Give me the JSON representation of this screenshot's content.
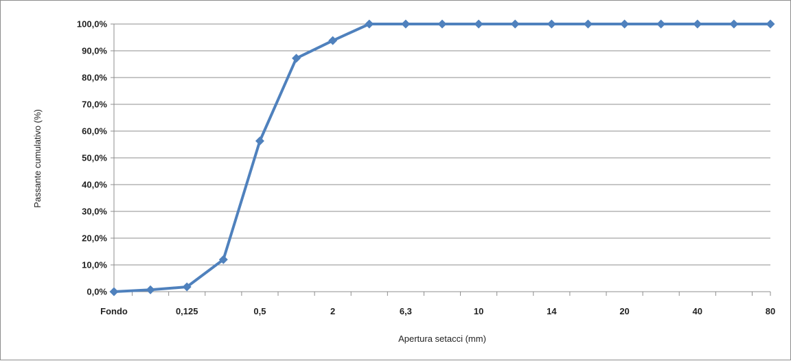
{
  "chart_data": {
    "type": "line",
    "title": "",
    "xlabel": "Apertura setacci (mm)",
    "ylabel": "Passante cumulativo (%)",
    "categories": [
      "Fondo",
      "",
      "0,125",
      "",
      "0,5",
      "",
      "2",
      "",
      "6,3",
      "",
      "10",
      "",
      "14",
      "",
      "20",
      "",
      "40",
      "",
      "80"
    ],
    "series": [
      {
        "values": [
          0.0,
          0.7,
          1.8,
          12.0,
          56.3,
          87.2,
          93.8,
          100.0,
          100.0,
          100.0,
          100.0,
          100.0,
          100.0,
          100.0,
          100.0,
          100.0,
          100.0,
          100.0,
          100.0
        ]
      }
    ],
    "ylim": [
      0,
      100
    ],
    "yticks": [
      "0,0%",
      "10,0%",
      "20,0%",
      "30,0%",
      "40,0%",
      "50,0%",
      "60,0%",
      "70,0%",
      "80,0%",
      "90,0%",
      "100,0%"
    ],
    "grid": true,
    "legend": "none",
    "colors": {
      "series": "#4f81bd",
      "grid": "#8c8c8c",
      "axis": "#8c8c8c"
    },
    "marker": "diamond"
  }
}
